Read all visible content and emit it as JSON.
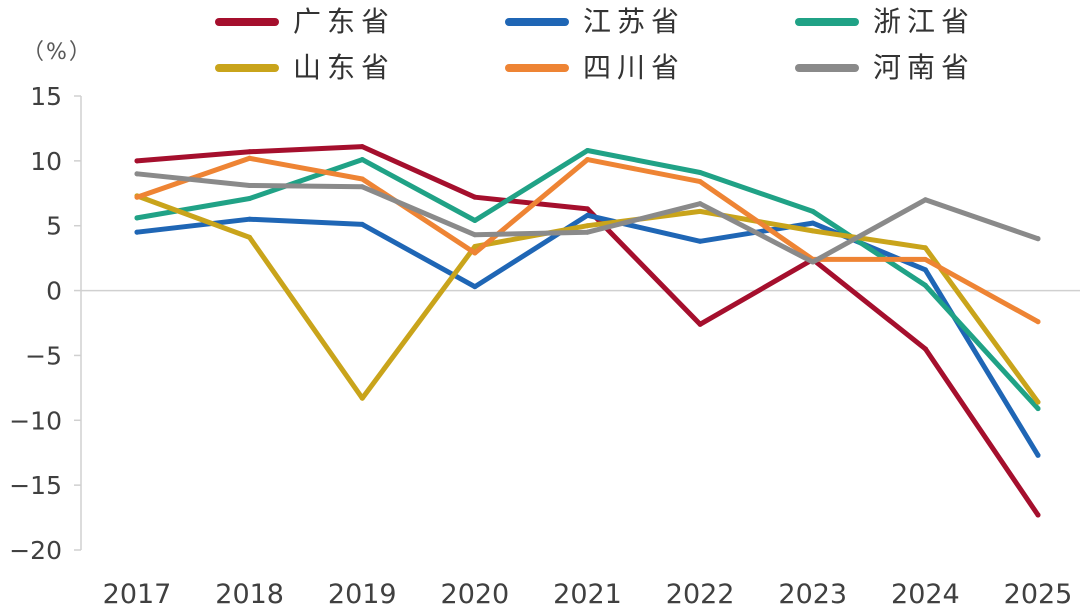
{
  "chart_data": {
    "type": "line",
    "title": "",
    "unit_label": "（%）",
    "xlabel": "",
    "ylabel": "",
    "ylim": [
      -20,
      15
    ],
    "yticks": [
      15,
      10,
      5,
      0,
      -5,
      -10,
      -15,
      -20
    ],
    "ytick_labels": [
      "15",
      "10",
      "5",
      "0",
      "−5",
      "−10",
      "−15",
      "−20"
    ],
    "categories": [
      "2017",
      "2018",
      "2019",
      "2020",
      "2021",
      "2022",
      "2023",
      "2024",
      "2025"
    ],
    "legend_position": "top",
    "series": [
      {
        "name": "广东省",
        "color": "#a50f2d",
        "values": [
          10.0,
          10.7,
          11.1,
          7.2,
          6.3,
          -2.6,
          2.4,
          -4.5,
          -17.3
        ]
      },
      {
        "name": "江苏省",
        "color": "#1f66b5",
        "values": [
          4.5,
          5.5,
          5.1,
          0.3,
          5.8,
          3.8,
          5.2,
          1.6,
          -12.7
        ]
      },
      {
        "name": "浙江省",
        "color": "#20a286",
        "values": [
          5.6,
          7.1,
          10.1,
          5.4,
          10.8,
          9.1,
          6.1,
          0.4,
          -9.1
        ]
      },
      {
        "name": "山东省",
        "color": "#c9a41b",
        "values": [
          7.3,
          4.1,
          -8.3,
          3.4,
          5.0,
          6.1,
          4.6,
          3.3,
          -8.6
        ]
      },
      {
        "name": "四川省",
        "color": "#ee8434",
        "values": [
          7.2,
          10.2,
          8.6,
          2.9,
          10.1,
          8.4,
          2.4,
          2.4,
          -2.4
        ]
      },
      {
        "name": "河南省",
        "color": "#8a8a8a",
        "values": [
          9.0,
          8.1,
          8.0,
          4.3,
          4.5,
          6.7,
          2.2,
          7.0,
          4.0
        ]
      }
    ]
  }
}
